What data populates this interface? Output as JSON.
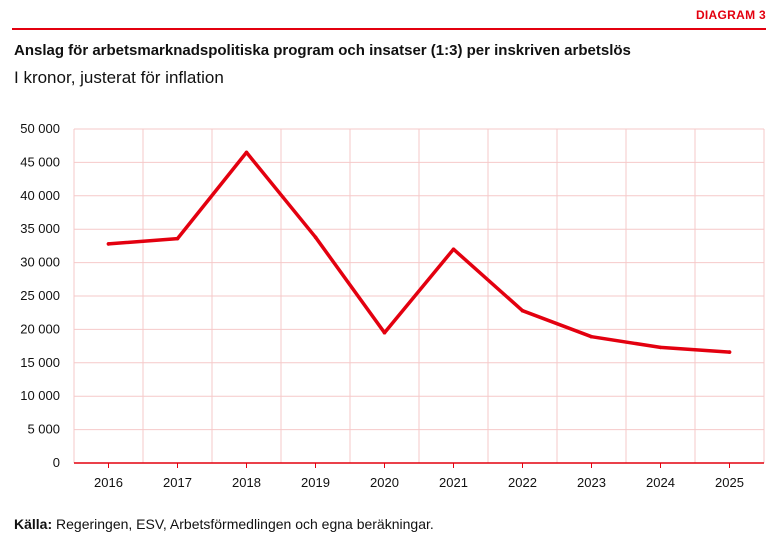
{
  "header": {
    "diagram_label": "DIAGRAM 3",
    "title": "Anslag för arbetsmarknadspolitiska program och insatser (1:3) per inskriven arbetslös",
    "subtitle": "I kronor, justerat för inflation"
  },
  "source": {
    "label": "Källa:",
    "text": "Regeringen, ESV, Arbetsförmedlingen och egna beräkningar."
  },
  "colors": {
    "accent": "#e3000f",
    "grid": "#f6c9c9",
    "line": "#e3000f"
  },
  "chart_data": {
    "type": "line",
    "title": "Anslag för arbetsmarknadspolitiska program och insatser (1:3) per inskriven arbetslös",
    "subtitle": "I kronor, justerat för inflation",
    "categories": [
      "2016",
      "2017",
      "2018",
      "2019",
      "2020",
      "2021",
      "2022",
      "2023",
      "2024",
      "2025"
    ],
    "series": [
      {
        "values": [
          32800,
          33600,
          46500,
          33800,
          19500,
          32000,
          22800,
          18900,
          17300,
          16600
        ]
      }
    ],
    "ylim": [
      0,
      50000
    ],
    "yticks": [
      0,
      5000,
      10000,
      15000,
      20000,
      25000,
      30000,
      35000,
      40000,
      45000,
      50000
    ],
    "ytick_labels": [
      "0",
      "5 000",
      "10 000",
      "15 000",
      "20 000",
      "25 000",
      "30 000",
      "35 000",
      "40 000",
      "45 000",
      "50 000"
    ],
    "grid": true,
    "xlabel": "",
    "ylabel": ""
  }
}
